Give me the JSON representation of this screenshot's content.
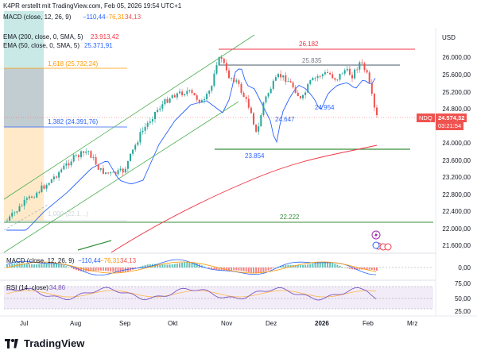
{
  "header": {
    "line1": "K4PR erstellt mit TradingView.com, Feb 05, 2026 19:54 UTC+1",
    "macd_label": "MACD (close, 12, 26, 9)",
    "macd_v1": "−110,44",
    "macd_v2": "−76,31",
    "macd_v3": "34,13",
    "ema200_label": "EMA (200, close, 0, SMA, 5)",
    "ema200_value": "23.913,42",
    "ema50_label": "EMA (50, close, 0, SMA, 5)",
    "ema50_value": "25.371,91"
  },
  "currency": "USD",
  "price_axis": [
    "26.000,00",
    "25.600,00",
    "25.200,00",
    "24.800,00",
    "24.400,00",
    "24.000,00",
    "23.600,00",
    "23.200,00",
    "22.800,00",
    "22.400,00",
    "22.000,00",
    "21.600,00"
  ],
  "macd_axis": [
    "0,00"
  ],
  "rsi_axis": [
    "75,00",
    "50,00",
    "25,00"
  ],
  "time_axis": [
    "Jul",
    "Aug",
    "Sep",
    "Okt",
    "Nov",
    "Dez",
    "2026",
    "Feb",
    "Mrz"
  ],
  "annotations": {
    "fib_1618": "1,618 (25.732,24)",
    "fib_1382": "1,382 (24.391,76)",
    "fib_low": "1,000 (22.1…)",
    "level_26182": "26.182",
    "level_25835": "25.835",
    "level_24954": "24.954",
    "level_24647": "24.647",
    "level_23854": "23.854",
    "level_22222": "22.222"
  },
  "ticker_tag": {
    "symbol": "NDQ",
    "price": "24.574,32",
    "countdown": "03:21:54"
  },
  "lower_macd": {
    "label": "MACD (close, 12, 26, 9)",
    "v1": "−110,44",
    "v2": "−76,31",
    "v3": "34,13"
  },
  "rsi": {
    "label": "RSI (14, close)",
    "value": "34,86"
  },
  "branding": {
    "name": "TradingView"
  },
  "colors": {
    "up": "#26a69a",
    "down": "#ef5350",
    "ema50": "#2962ff",
    "ema200": "#f23645",
    "channel": "#4caf50",
    "fib_fill_top": "#b2dfdb",
    "fib_fill_mid": "#90a4ae",
    "fib_fill_orange": "#ffe0b2",
    "rsi": "#7e57c2",
    "resistance": "#f23645",
    "support": "#388e3c"
  }
}
